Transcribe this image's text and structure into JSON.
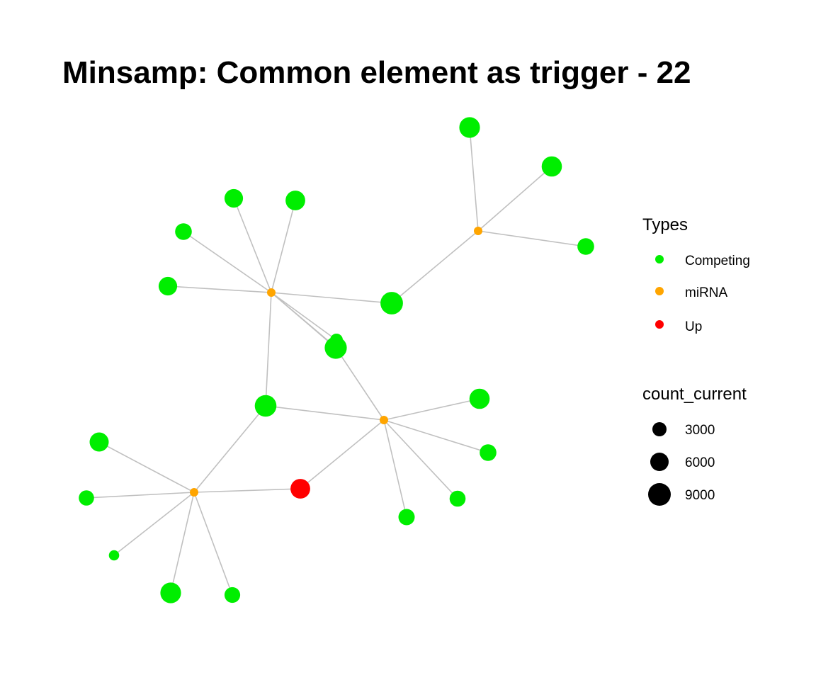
{
  "title": "Minsamp: Common element as trigger - 22",
  "legend": {
    "types_title": "Types",
    "types": [
      {
        "label": "Competing",
        "color": "#00ee00"
      },
      {
        "label": "miRNA",
        "color": "#ffa500"
      },
      {
        "label": "Up",
        "color": "#ff0000"
      }
    ],
    "size_title": "count_current",
    "sizes": [
      {
        "label": "3000",
        "value": 3000
      },
      {
        "label": "6000",
        "value": 6000
      },
      {
        "label": "9000",
        "value": 9000
      }
    ]
  },
  "network": {
    "edge_color": "#c0c0c0",
    "nodes": [
      {
        "id": "m1",
        "type": "miRNA"
      },
      {
        "id": "m2",
        "type": "miRNA"
      },
      {
        "id": "m3",
        "type": "miRNA"
      },
      {
        "id": "m4",
        "type": "miRNA"
      },
      {
        "id": "up1",
        "type": "Up",
        "count": 6000
      },
      {
        "id": "c1",
        "type": "Competing",
        "count": 7000
      },
      {
        "id": "c2",
        "type": "Competing",
        "count": 6500
      },
      {
        "id": "c3",
        "type": "Competing",
        "count": 3500
      },
      {
        "id": "c4",
        "type": "Competing",
        "count": 5000
      },
      {
        "id": "c5",
        "type": "Competing",
        "count": 6000
      },
      {
        "id": "c6",
        "type": "Competing",
        "count": 3500
      },
      {
        "id": "c7",
        "type": "Competing",
        "count": 5000
      },
      {
        "id": "c8",
        "type": "Competing",
        "count": 1200
      },
      {
        "id": "c9",
        "type": "Competing",
        "count": 5000
      },
      {
        "id": "c10",
        "type": "Competing",
        "count": 9000
      },
      {
        "id": "c11",
        "type": "Competing",
        "count": 8500
      },
      {
        "id": "c12",
        "type": "Competing",
        "count": 8000
      },
      {
        "id": "c13",
        "type": "Competing",
        "count": 6500
      },
      {
        "id": "c14",
        "type": "Competing",
        "count": 3500
      },
      {
        "id": "c15",
        "type": "Competing",
        "count": 3000
      },
      {
        "id": "c16",
        "type": "Competing",
        "count": 3200
      },
      {
        "id": "c17",
        "type": "Competing",
        "count": 5500
      },
      {
        "id": "c18",
        "type": "Competing",
        "count": 2500
      },
      {
        "id": "c19",
        "type": "Competing",
        "count": 400
      },
      {
        "id": "c20",
        "type": "Competing",
        "count": 7000
      },
      {
        "id": "c21",
        "type": "Competing",
        "count": 2800
      }
    ],
    "edges": [
      [
        "m1",
        "c1"
      ],
      [
        "m1",
        "c2"
      ],
      [
        "m1",
        "c3"
      ],
      [
        "m1",
        "c10"
      ],
      [
        "m2",
        "c4"
      ],
      [
        "m2",
        "c5"
      ],
      [
        "m2",
        "c6"
      ],
      [
        "m2",
        "c7"
      ],
      [
        "m2",
        "c8"
      ],
      [
        "m2",
        "c9"
      ],
      [
        "m2",
        "c10"
      ],
      [
        "m2",
        "c11"
      ],
      [
        "m2",
        "c12"
      ],
      [
        "m3",
        "c11"
      ],
      [
        "m3",
        "c12"
      ],
      [
        "m3",
        "c13"
      ],
      [
        "m3",
        "c14"
      ],
      [
        "m3",
        "c15"
      ],
      [
        "m3",
        "c16"
      ],
      [
        "m3",
        "up1"
      ],
      [
        "m4",
        "c12"
      ],
      [
        "m4",
        "c17"
      ],
      [
        "m4",
        "c18"
      ],
      [
        "m4",
        "c19"
      ],
      [
        "m4",
        "c20"
      ],
      [
        "m4",
        "c21"
      ],
      [
        "m4",
        "up1"
      ]
    ]
  }
}
